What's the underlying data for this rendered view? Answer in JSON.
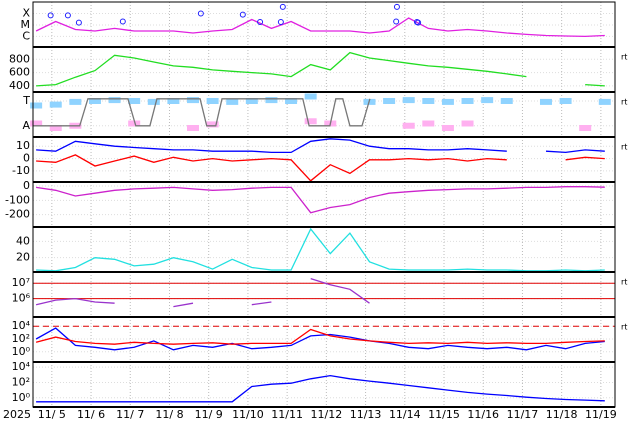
{
  "time_axis": {
    "xlim": [
      4.52,
      19.36
    ],
    "year": "2025",
    "xticks": [
      {
        "value": 5,
        "label": "11/ 5"
      },
      {
        "value": 6,
        "label": "11/ 6"
      },
      {
        "value": 7,
        "label": "11/ 7"
      },
      {
        "value": 8,
        "label": "11/ 8"
      },
      {
        "value": 9,
        "label": "11/ 9"
      },
      {
        "value": 10,
        "label": "11/10"
      },
      {
        "value": 11,
        "label": "11/11"
      },
      {
        "value": 12,
        "label": "11/12"
      },
      {
        "value": 13,
        "label": "11/13"
      },
      {
        "value": 14,
        "label": "11/14"
      },
      {
        "value": 15,
        "label": "11/15"
      },
      {
        "value": 16,
        "label": "11/16"
      },
      {
        "value": 17,
        "label": "11/17"
      },
      {
        "value": 18,
        "label": "11/18"
      },
      {
        "value": 19,
        "label": "11/19"
      }
    ],
    "x": [
      4.6,
      5.1,
      5.6,
      6.1,
      6.6,
      7.1,
      7.6,
      8.1,
      8.6,
      9.1,
      9.6,
      10.1,
      10.6,
      11.1,
      11.6,
      12.1,
      12.6,
      13.1,
      13.6,
      14.1,
      14.6,
      15.1,
      15.6,
      16.1,
      16.6,
      17.1,
      17.6,
      18.1,
      18.6,
      19.1
    ]
  },
  "chart_data": [
    {
      "type": "line",
      "log": true,
      "ylim": [
        1.2e-07,
        0.001
      ],
      "yticks": [
        {
          "value": 0.0001,
          "label": "X"
        },
        {
          "value": 1e-05,
          "label": "M"
        },
        {
          "value": 1e-06,
          "label": "C"
        }
      ],
      "series": [
        {
          "color": "#e020e0",
          "values": [
            3e-06,
            2e-05,
            4e-06,
            3e-06,
            5e-06,
            3e-06,
            3e-06,
            3e-06,
            2e-06,
            3e-06,
            4e-06,
            3e-05,
            5e-06,
            2e-05,
            3e-06,
            3e-06,
            3e-06,
            2e-06,
            3e-06,
            4e-05,
            5e-06,
            3e-06,
            4e-06,
            3e-06,
            2e-06,
            1.5e-06,
            1.2e-06,
            1.1e-06,
            1e-06,
            1.2e-06
          ]
        },
        {
          "color": "#2020ff",
          "marker": "circle",
          "x": [
            4.97,
            5.41,
            5.69,
            6.81,
            8.8,
            9.87,
            10.31,
            10.84,
            10.89,
            13.8,
            13.78,
            14.31,
            14.34
          ],
          "values": [
            6.8e-05,
            6.8e-05,
            1.6e-05,
            2e-05,
            0.0001,
            8e-05,
            1.8e-05,
            1.8e-05,
            0.00038,
            0.00038,
            2e-05,
            1.8e-05,
            1.6e-05
          ]
        }
      ]
    },
    {
      "type": "line",
      "ylim": [
        308,
        985
      ],
      "yticks": [
        400,
        600,
        800
      ],
      "side_label": "rt",
      "series": [
        {
          "color": "#22dd22",
          "values": [
            400,
            420,
            530,
            630,
            860,
            820,
            760,
            700,
            680,
            640,
            620,
            600,
            580,
            540,
            720,
            640,
            900,
            820,
            780,
            740,
            700,
            680,
            650,
            620,
            580,
            540,
            null,
            null,
            420,
            400
          ]
        }
      ]
    },
    {
      "type": "line",
      "ylim": [
        0,
        1
      ],
      "yticks": [
        {
          "value": 0.8,
          "label": "T"
        },
        {
          "value": 0.25,
          "label": "A"
        }
      ],
      "side_label": "rt",
      "series": [
        {
          "color": "#8fd3ff",
          "marker": "dot",
          "values": [
            0.7,
            0.72,
            0.78,
            0.8,
            0.82,
            0.8,
            0.78,
            0.8,
            0.82,
            0.8,
            0.78,
            0.8,
            0.82,
            0.8,
            0.9,
            null,
            null,
            0.78,
            0.8,
            0.82,
            0.8,
            0.78,
            0.8,
            0.82,
            0.8,
            null,
            0.78,
            0.8,
            null,
            0.78
          ]
        },
        {
          "color": "#ffb0f0",
          "marker": "dot",
          "values": [
            0.3,
            0.2,
            0.25,
            null,
            null,
            0.3,
            null,
            null,
            0.2,
            0.28,
            null,
            null,
            null,
            null,
            0.35,
            0.3,
            null,
            null,
            null,
            0.25,
            0.3,
            0.2,
            0.3,
            null,
            null,
            null,
            null,
            null,
            0.2,
            null
          ]
        },
        {
          "color": "#777777",
          "x": [
            4.52,
            5.71,
            5.92,
            6.94,
            7.14,
            7.5,
            7.68,
            8.78,
            8.95,
            9.18,
            9.34,
            11.4,
            11.56,
            12.09,
            12.24,
            12.42,
            12.6,
            12.91,
            13.11
          ],
          "values": [
            0.25,
            0.25,
            0.85,
            0.85,
            0.25,
            0.25,
            0.85,
            0.85,
            0.25,
            0.25,
            0.85,
            0.85,
            0.25,
            0.25,
            0.85,
            0.85,
            0.25,
            0.25,
            0.85
          ]
        }
      ]
    },
    {
      "type": "line",
      "ylim": [
        -19,
        17.5
      ],
      "yticks": [
        10,
        0,
        -10
      ],
      "side_label": "rt",
      "series": [
        {
          "color": "#0000ff",
          "values": [
            7,
            6,
            14,
            12,
            10,
            9,
            8,
            7,
            7,
            6,
            6,
            6,
            5,
            5,
            14,
            16,
            15,
            10,
            8,
            8,
            7,
            7,
            8,
            7,
            6,
            null,
            6,
            5,
            7,
            6
          ]
        },
        {
          "color": "#ff0000",
          "values": [
            -2,
            -3,
            3,
            -6,
            -2,
            2,
            -3,
            1,
            -2,
            0,
            -2,
            -1,
            0,
            -1,
            -18,
            -5,
            -12,
            -1,
            -1,
            0,
            -1,
            0,
            -2,
            0,
            -1,
            null,
            null,
            -1,
            1,
            0
          ]
        }
      ]
    },
    {
      "type": "line",
      "ylim": [
        -286,
        28
      ],
      "yticks": [
        0,
        -100,
        -200
      ],
      "series": [
        {
          "color": "#cc22cc",
          "values": [
            -10,
            -30,
            -70,
            -50,
            -30,
            -20,
            -15,
            -10,
            -20,
            -30,
            -25,
            -15,
            -10,
            -10,
            -186,
            -150,
            -130,
            -80,
            -50,
            -40,
            -30,
            -25,
            -20,
            -20,
            -15,
            -10,
            -10,
            -5,
            -5,
            -8
          ]
        }
      ]
    },
    {
      "type": "line",
      "ylim": [
        2.5,
        57.5
      ],
      "yticks": [
        40,
        20
      ],
      "series": [
        {
          "color": "#22e0e0",
          "values": [
            5,
            4,
            8,
            20,
            18,
            10,
            12,
            20,
            15,
            6,
            18,
            8,
            5,
            5,
            55,
            25,
            50,
            15,
            6,
            5,
            5,
            5,
            6,
            5,
            5,
            4,
            4,
            5,
            4,
            5
          ]
        }
      ]
    },
    {
      "type": "line",
      "log": true,
      "ylim": [
        63000,
        54000000
      ],
      "side_label": "rt",
      "yticks": [
        {
          "value": 10000000,
          "label": "10⁷"
        },
        {
          "value": 1000000,
          "label": "10⁶"
        }
      ],
      "thresholds": [
        {
          "value": 10000000,
          "color": "#e00000",
          "dashed": false
        },
        {
          "value": 1000000,
          "color": "#e00000",
          "dashed": false
        }
      ],
      "series": [
        {
          "color": "#9933cc",
          "values": [
            400000,
            800000,
            1000000,
            600000,
            500000,
            null,
            null,
            300000,
            500000,
            null,
            null,
            400000,
            600000,
            null,
            20000000,
            8000000,
            4000000,
            500000,
            null,
            null,
            null,
            null,
            null,
            null,
            null,
            null,
            null,
            null,
            null,
            null
          ]
        }
      ]
    },
    {
      "type": "line",
      "log": true,
      "ylim": [
        0.025,
        275000
      ],
      "side_label": "rt",
      "yticks": [
        {
          "value": 10000,
          "label": "10⁴"
        },
        {
          "value": 100,
          "label": "10²"
        },
        {
          "value": 1,
          "label": "10⁰"
        }
      ],
      "thresholds": [
        {
          "value": 10000,
          "color": "#e00000",
          "dashed": true
        }
      ],
      "series": [
        {
          "color": "#0000ff",
          "values": [
            100,
            5000,
            10,
            5,
            2,
            5,
            50,
            2,
            10,
            5,
            20,
            3,
            5,
            10,
            300,
            500,
            200,
            50,
            20,
            5,
            3,
            10,
            5,
            3,
            5,
            2,
            10,
            3,
            20,
            40
          ]
        },
        {
          "color": "#ff0000",
          "values": [
            30,
            200,
            40,
            20,
            15,
            30,
            20,
            15,
            20,
            25,
            15,
            20,
            20,
            20,
            3000,
            300,
            100,
            50,
            30,
            20,
            25,
            20,
            30,
            20,
            25,
            20,
            20,
            30,
            40,
            50
          ]
        }
      ]
    },
    {
      "type": "line",
      "log": true,
      "ylim": [
        0.063,
        47000
      ],
      "yticks": [
        {
          "value": 10000,
          "label": "10⁴"
        },
        {
          "value": 100,
          "label": "10²"
        },
        {
          "value": 1,
          "label": "10⁰"
        }
      ],
      "series": [
        {
          "color": "#0000ff",
          "values": [
            0.3,
            0.3,
            0.3,
            0.3,
            0.3,
            0.3,
            0.3,
            0.3,
            0.3,
            0.3,
            0.3,
            30,
            60,
            80,
            300,
            800,
            300,
            150,
            80,
            40,
            20,
            10,
            5,
            3,
            2,
            1.2,
            0.8,
            0.6,
            0.5,
            0.4
          ]
        }
      ]
    }
  ]
}
